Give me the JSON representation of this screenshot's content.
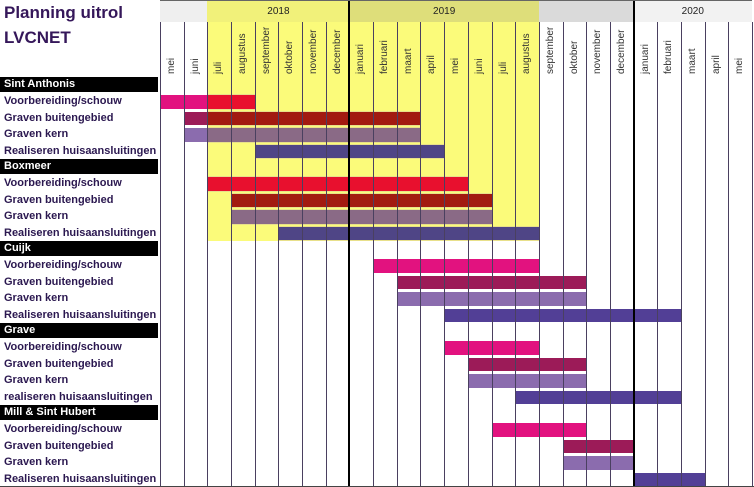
{
  "title_line1": "Planning uitrol",
  "title_line2": "LVCNET",
  "years": [
    {
      "label": "",
      "months": [
        "mei",
        "juni"
      ],
      "color": "#efefef"
    },
    {
      "label": "2018",
      "months": [
        "juli",
        "augustus",
        "september",
        "oktober",
        "november",
        "december"
      ],
      "color": "#f1f17a"
    },
    {
      "label": "2019",
      "months": [
        "januari",
        "februari",
        "maart",
        "april",
        "mei",
        "juni",
        "juli",
        "augustus"
      ],
      "color": "#dede7a"
    },
    {
      "label": "",
      "months": [
        "september",
        "oktober",
        "november",
        "december"
      ],
      "color": "#dadada"
    },
    {
      "label": "2020",
      "months": [
        "januari",
        "februari",
        "maart",
        "april",
        "mei"
      ],
      "color": "#f2f2f2"
    }
  ],
  "highlight": {
    "start": "2018-07",
    "end": "2019-08",
    "color": "#fbfb7a"
  },
  "colors": {
    "voorbereiding": "#e2127f",
    "buiten": "#9c1b58",
    "kern": "#8b6cae",
    "realiseren": "#523f96",
    "voorbereiding_highlight": "#e8102e",
    "buiten_highlight": "#a21a10",
    "kern_highlight": "#8a6a86",
    "realiseren_highlight": "#4f4586"
  },
  "chart_data": {
    "type": "gantt",
    "sections": [
      {
        "name": "Sint Anthonis",
        "tasks": [
          {
            "label": "Voorbereiding/schouw",
            "kind": "voorbereiding",
            "start": "2018-05",
            "end": "2018-08"
          },
          {
            "label": "Graven buitengebied",
            "kind": "buiten",
            "start": "2018-06",
            "end": "2019-03"
          },
          {
            "label": "Graven kern",
            "kind": "kern",
            "start": "2018-06",
            "end": "2019-03"
          },
          {
            "label": "Realiseren huisaansluitingen",
            "kind": "realiseren",
            "start": "2018-09",
            "end": "2019-04"
          }
        ]
      },
      {
        "name": "Boxmeer",
        "tasks": [
          {
            "label": "Voorbereiding/schouw",
            "kind": "voorbereiding",
            "start": "2018-07",
            "end": "2019-05"
          },
          {
            "label": "Graven buitengebied",
            "kind": "buiten",
            "start": "2018-08",
            "end": "2019-06"
          },
          {
            "label": "Graven kern",
            "kind": "kern",
            "start": "2018-08",
            "end": "2019-06"
          },
          {
            "label": "Realiseren huisaansluitingen",
            "kind": "realiseren",
            "start": "2018-10",
            "end": "2019-08"
          }
        ]
      },
      {
        "name": "Cuijk",
        "tasks": [
          {
            "label": "Voorbereiding/schouw",
            "kind": "voorbereiding",
            "start": "2019-02",
            "end": "2019-08"
          },
          {
            "label": "Graven buitengebied",
            "kind": "buiten",
            "start": "2019-03",
            "end": "2019-10"
          },
          {
            "label": "Graven kern",
            "kind": "kern",
            "start": "2019-03",
            "end": "2019-10"
          },
          {
            "label": "Realiseren huisaansluitingen",
            "kind": "realiseren",
            "start": "2019-05",
            "end": "2020-02"
          }
        ]
      },
      {
        "name": "Grave",
        "tasks": [
          {
            "label": "Voorbereiding/schouw",
            "kind": "voorbereiding",
            "start": "2019-05",
            "end": "2019-08"
          },
          {
            "label": "Graven buitengebied",
            "kind": "buiten",
            "start": "2019-06",
            "end": "2019-10"
          },
          {
            "label": "Graven kern",
            "kind": "kern",
            "start": "2019-06",
            "end": "2019-10"
          },
          {
            "label": "realiseren huisaansluitingen",
            "kind": "realiseren",
            "start": "2019-08",
            "end": "2020-02"
          }
        ]
      },
      {
        "name": "Mill & Sint Hubert",
        "tasks": [
          {
            "label": "Voorbereiding/schouw",
            "kind": "voorbereiding",
            "start": "2019-07",
            "end": "2019-10"
          },
          {
            "label": "Graven buitengebied",
            "kind": "buiten",
            "start": "2019-10",
            "end": "2019-12"
          },
          {
            "label": "Graven kern",
            "kind": "kern",
            "start": "2019-10",
            "end": "2019-12"
          },
          {
            "label": "Realiseren huisaansluitingen",
            "kind": "realiseren",
            "start": "2020-01",
            "end": "2020-03"
          }
        ]
      }
    ]
  }
}
